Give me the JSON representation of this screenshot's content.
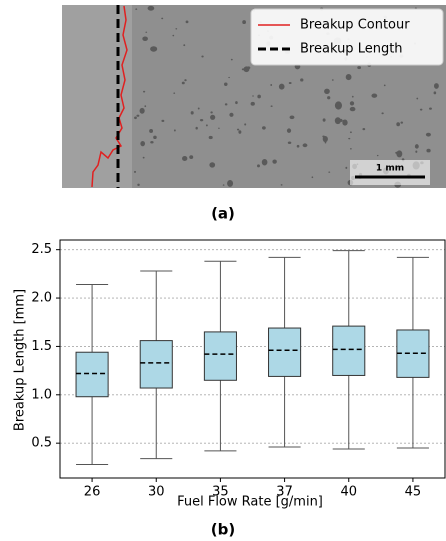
{
  "panel_a": {
    "legend": [
      "Breakup Contour",
      "Breakup Length"
    ],
    "scale_bar": "1 mm",
    "caption": "(a)"
  },
  "chart_data": {
    "type": "box",
    "caption": "(b)",
    "x_label": "Fuel Flow Rate [g/min]",
    "y_label": "Breakup Length [mm]",
    "categories": [
      "26",
      "30",
      "35",
      "37",
      "40",
      "45"
    ],
    "boxes": [
      {
        "min": 0.28,
        "q1": 0.98,
        "median": 1.22,
        "q3": 1.44,
        "max": 2.14
      },
      {
        "min": 0.34,
        "q1": 1.07,
        "median": 1.33,
        "q3": 1.56,
        "max": 2.28
      },
      {
        "min": 0.42,
        "q1": 1.15,
        "median": 1.42,
        "q3": 1.65,
        "max": 2.38
      },
      {
        "min": 0.46,
        "q1": 1.19,
        "median": 1.46,
        "q3": 1.69,
        "max": 2.42
      },
      {
        "min": 0.44,
        "q1": 1.2,
        "median": 1.47,
        "q3": 1.71,
        "max": 2.49
      },
      {
        "min": 0.45,
        "q1": 1.18,
        "median": 1.43,
        "q3": 1.67,
        "max": 2.42
      }
    ],
    "color": "#add8e6",
    "ylim": [
      0.14,
      2.6
    ],
    "yticks": [
      0.5,
      {
        "value": 1,
        "label": "1.0"
      },
      1.5,
      {
        "value": 2,
        "label": "2.0"
      },
      2.5
    ],
    "grid": true
  }
}
